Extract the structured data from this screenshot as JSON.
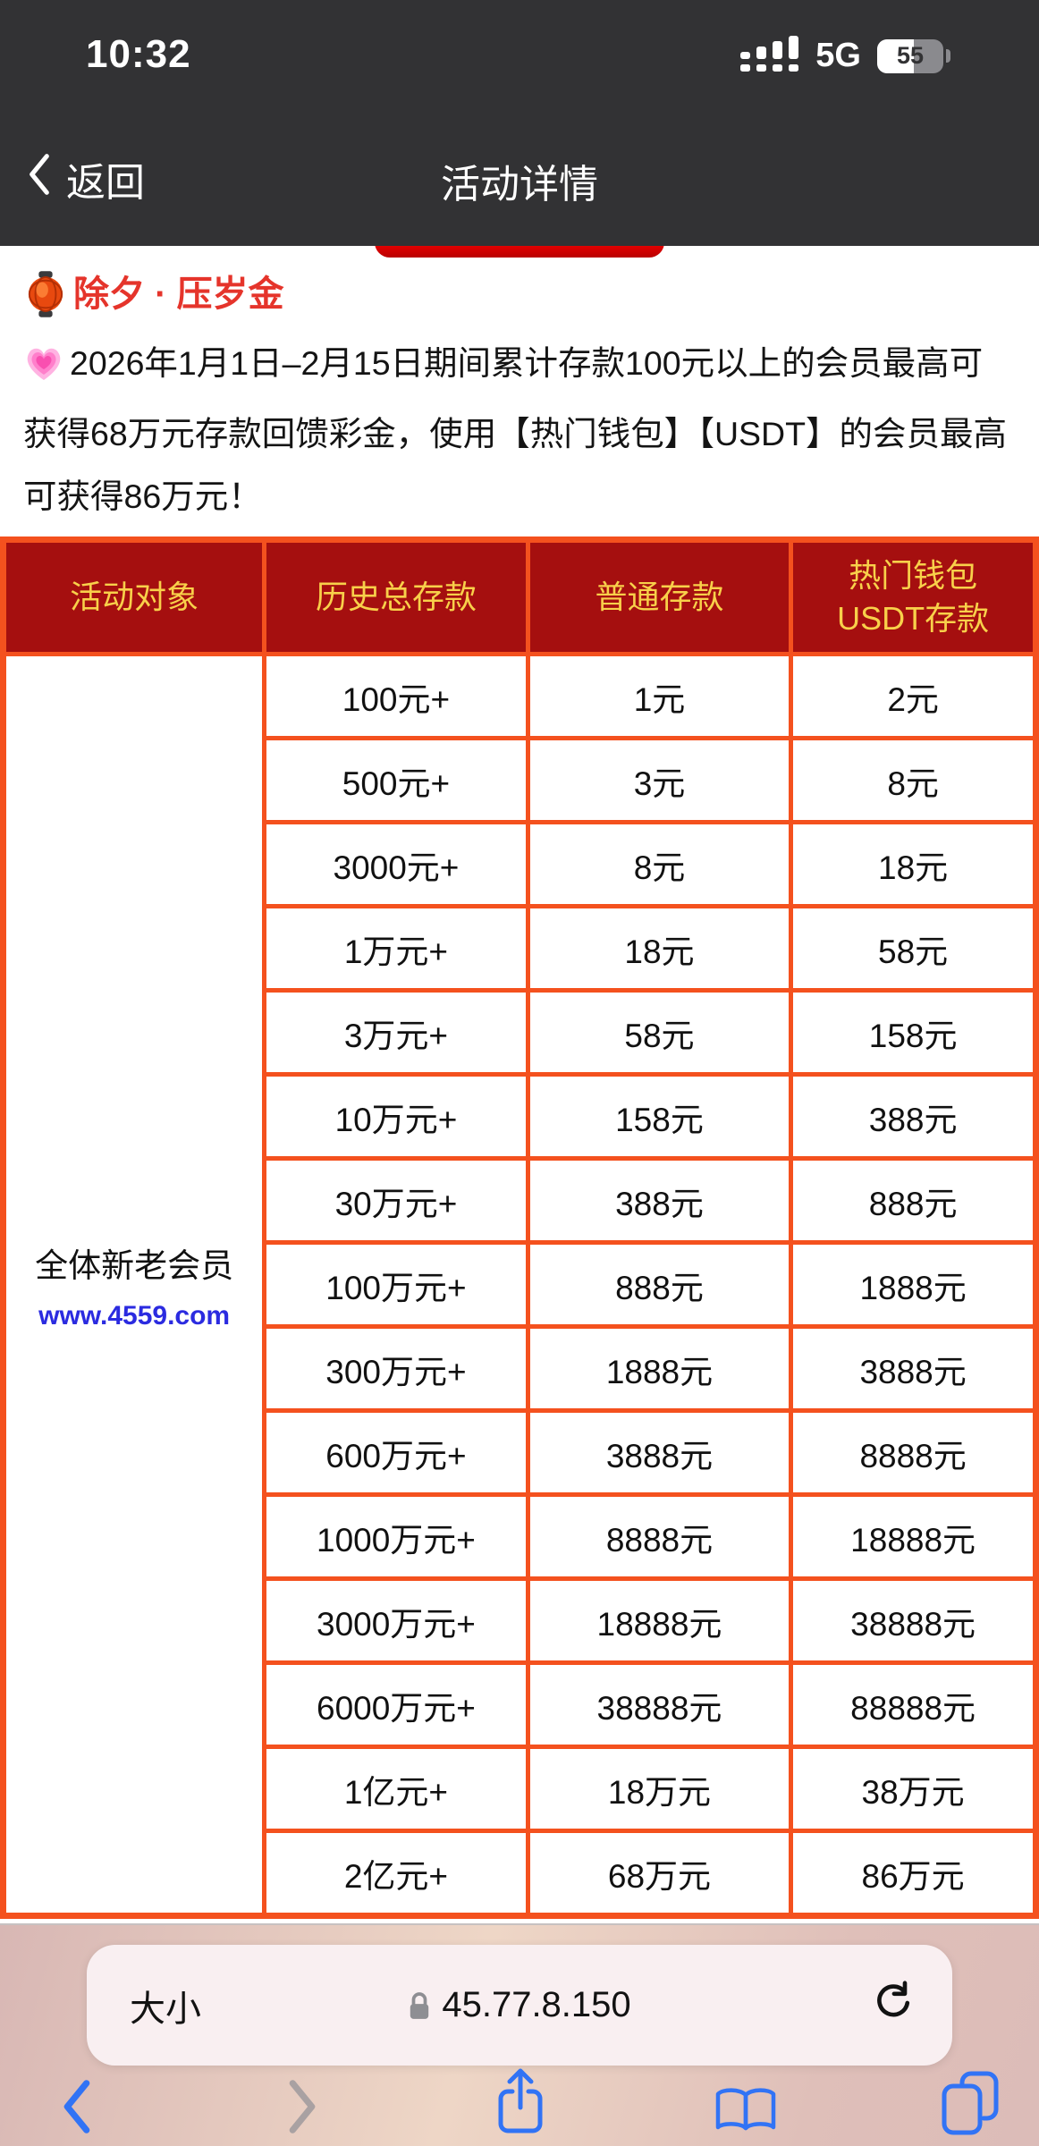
{
  "status_bar": {
    "time": "10:32",
    "network": "5G",
    "battery_level": "55"
  },
  "nav_bar": {
    "back_label": "返回",
    "title": "活动详情"
  },
  "promo": {
    "title": "除夕 · 压岁金",
    "title_icon": "red-lantern",
    "description": "2026年1月1日–2月15日期间累计存款100元以上的会员最高可获得68万元存款回馈彩金，使用【热门钱包】【USDT】的会员最高可获得86万元！",
    "description_icon": "growing-heart"
  },
  "table": {
    "header": {
      "col1": "活动对象",
      "col2": "历史总存款",
      "col3": "普通存款",
      "col4_line1": "热门钱包",
      "col4_line2": "USDT存款"
    },
    "audience": {
      "label": "全体新老会员",
      "link": "www.4559.com"
    },
    "rows": [
      [
        "100元+",
        "1元",
        "2元"
      ],
      [
        "500元+",
        "3元",
        "8元"
      ],
      [
        "3000元+",
        "8元",
        "18元"
      ],
      [
        "1万元+",
        "18元",
        "58元"
      ],
      [
        "3万元+",
        "58元",
        "158元"
      ],
      [
        "10万元+",
        "158元",
        "388元"
      ],
      [
        "30万元+",
        "388元",
        "888元"
      ],
      [
        "100万元+",
        "888元",
        "1888元"
      ],
      [
        "300万元+",
        "1888元",
        "3888元"
      ],
      [
        "600万元+",
        "3888元",
        "8888元"
      ],
      [
        "1000万元+",
        "8888元",
        "18888元"
      ],
      [
        "3000万元+",
        "18888元",
        "38888元"
      ],
      [
        "6000万元+",
        "38888元",
        "88888元"
      ],
      [
        "1亿元+",
        "18万元",
        "38万元"
      ],
      [
        "2亿元+",
        "68万元",
        "86万元"
      ]
    ]
  },
  "browser_bar": {
    "text_size_label": "大小",
    "url": "45.77.8.150"
  },
  "colors": {
    "chrome_dark": "#323234",
    "table_border": "#f4511e",
    "header_bg": "#a50f0f",
    "header_text": "#f8d04a",
    "promo_red": "#e5342b",
    "link_blue": "#2b2be0",
    "ios_blue": "#3173f5"
  }
}
